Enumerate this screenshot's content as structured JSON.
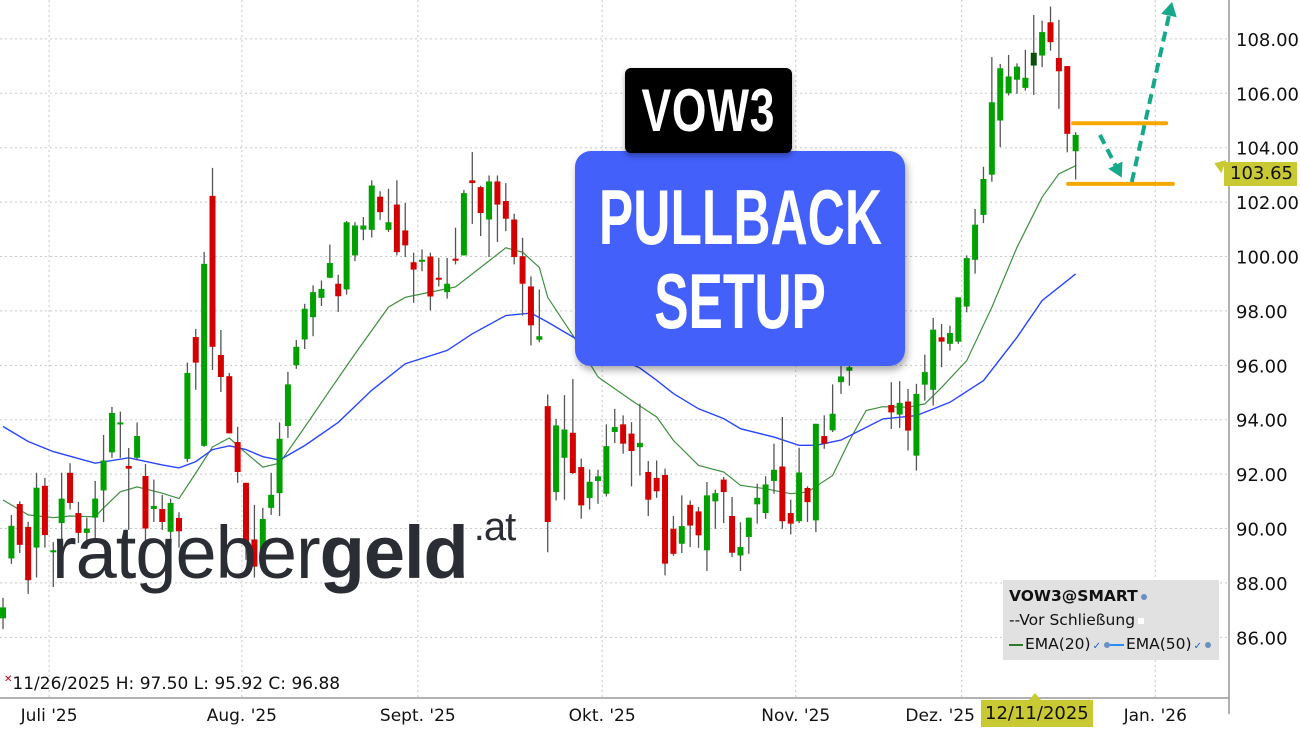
{
  "title": "VOW3",
  "subtitle_line1": "PULLBACK",
  "subtitle_line2": "SETUP",
  "logo": {
    "regular": "ratgeber",
    "bold": "geld",
    "suffix": ".at"
  },
  "info_line": "11/26/2025 H: 97.50 L: 95.92 C: 96.88",
  "last_price_label": "103.65",
  "crosshair_date_label": "12/11/2025",
  "legend": {
    "symbol": "VOW3@SMART",
    "close_item": "Vor Schließung",
    "ema20": "EMA(20)",
    "ema50": "EMA(50)"
  },
  "colors": {
    "up": "#00a000",
    "down": "#d40000",
    "up_dark": "#0b4f0b",
    "wick": "#555555",
    "ema20": "#3f8f3f",
    "ema50": "#2846ff",
    "level_lines": "#f5a800",
    "arrows": "#16a88a",
    "setup_box": "#4460fb",
    "highlight": "#c9c934"
  },
  "chart_data": {
    "type": "candlestick",
    "title": "",
    "xlabel": "",
    "ylabel": "",
    "ylim": [
      83.77,
      109.43
    ],
    "xlim_bars": [
      -0.36,
      146.3
    ],
    "grid": true,
    "y_ticks": [
      "86.00",
      "88.00",
      "90.00",
      "92.00",
      "94.00",
      "96.00",
      "98.00",
      "100.00",
      "102.00",
      "104.00",
      "106.00",
      "108.00"
    ],
    "x_ticks": [
      {
        "label": "Juli '25",
        "bar": 5.5
      },
      {
        "label": "Aug. '25",
        "bar": 28.5
      },
      {
        "label": "Sept. '25",
        "bar": 49.5
      },
      {
        "label": "Okt. '25",
        "bar": 71.5
      },
      {
        "label": "Nov. '25",
        "bar": 94.6
      },
      {
        "label": "Dez. '25",
        "bar": 114.4
      },
      {
        "label": "Jan. '26",
        "bar": 137.5
      }
    ],
    "ohlc_fields": [
      "open",
      "high",
      "low",
      "close"
    ],
    "candles": [
      [
        86.7,
        87.45,
        86.3,
        87.1
      ],
      [
        88.9,
        90.5,
        88.7,
        90.1
      ],
      [
        90.9,
        91.0,
        89.1,
        89.4
      ],
      [
        90.06,
        90.25,
        87.6,
        88.1
      ],
      [
        89.3,
        92.05,
        88.2,
        91.5
      ],
      [
        91.57,
        91.86,
        89.3,
        89.76
      ],
      [
        89.2,
        89.5,
        87.85,
        89.2
      ],
      [
        90.2,
        92.05,
        89.5,
        91.1
      ],
      [
        92.05,
        92.4,
        90.7,
        90.94
      ],
      [
        90.57,
        90.98,
        89.47,
        89.84
      ],
      [
        89.84,
        90.4,
        89.3,
        90.0
      ],
      [
        90.4,
        91.75,
        89.47,
        91.1
      ],
      [
        91.4,
        93.44,
        90.24,
        92.5
      ],
      [
        92.8,
        94.47,
        92.6,
        94.25
      ],
      [
        93.85,
        94.3,
        92.6,
        93.9
      ],
      [
        92.3,
        92.96,
        89.95,
        92.2
      ],
      [
        92.6,
        93.9,
        92.5,
        93.4
      ],
      [
        91.93,
        92.37,
        89.5,
        90.0
      ],
      [
        90.72,
        91.8,
        90.24,
        90.83
      ],
      [
        90.72,
        91.24,
        89.95,
        90.24
      ],
      [
        89.88,
        91.1,
        88.66,
        90.94
      ],
      [
        90.39,
        90.6,
        89.3,
        89.9
      ],
      [
        92.56,
        96.1,
        92.45,
        95.72
      ],
      [
        97.04,
        97.34,
        95.1,
        96.1
      ],
      [
        93.04,
        100.17,
        93.0,
        99.73
      ],
      [
        102.23,
        103.26,
        95.83,
        96.68
      ],
      [
        96.38,
        97.3,
        95.02,
        95.57
      ],
      [
        95.6,
        95.72,
        93.5,
        93.5
      ],
      [
        93.18,
        93.74,
        91.68,
        92.08
      ],
      [
        91.68,
        91.68,
        88.85,
        89.4
      ],
      [
        89.6,
        90.87,
        88.2,
        88.6
      ],
      [
        89.1,
        90.76,
        88.7,
        90.35
      ],
      [
        90.76,
        92.05,
        90.5,
        91.24
      ],
      [
        91.3,
        93.9,
        90.46,
        93.3
      ],
      [
        93.77,
        95.76,
        93.33,
        95.3
      ],
      [
        96.0,
        96.93,
        95.87,
        96.68
      ],
      [
        96.95,
        98.26,
        96.6,
        98.08
      ],
      [
        97.77,
        98.94,
        97.07,
        98.69
      ],
      [
        98.48,
        99.12,
        98.18,
        98.81
      ],
      [
        99.22,
        100.44,
        99.2,
        99.76
      ],
      [
        99.0,
        99.33,
        97.96,
        98.54
      ],
      [
        98.79,
        101.3,
        98.6,
        101.26
      ],
      [
        100.04,
        101.26,
        99.83,
        101.14
      ],
      [
        100.99,
        101.45,
        100.6,
        101.14
      ],
      [
        100.98,
        102.8,
        100.7,
        102.61
      ],
      [
        102.2,
        102.4,
        101.35,
        101.63
      ],
      [
        100.98,
        102.49,
        100.9,
        101.26
      ],
      [
        101.91,
        102.8,
        100.04,
        100.16
      ],
      [
        100.96,
        101.97,
        99.98,
        100.41
      ],
      [
        99.79,
        100.14,
        98.3,
        99.52
      ],
      [
        99.83,
        100.26,
        99.46,
        99.88
      ],
      [
        100.0,
        100.14,
        98.02,
        98.53
      ],
      [
        99.22,
        99.95,
        98.9,
        99.16
      ],
      [
        98.69,
        99.95,
        98.45,
        99.0
      ],
      [
        99.92,
        101.06,
        99.71,
        99.86
      ],
      [
        100.04,
        102.45,
        100.04,
        102.33
      ],
      [
        102.8,
        103.84,
        101.2,
        102.7
      ],
      [
        102.55,
        102.6,
        100.75,
        101.6
      ],
      [
        101.36,
        102.98,
        99.98,
        102.76
      ],
      [
        102.76,
        102.98,
        100.53,
        101.91
      ],
      [
        102.04,
        102.7,
        100.93,
        101.39
      ],
      [
        101.36,
        101.57,
        99.71,
        99.98
      ],
      [
        100.01,
        100.69,
        97.83,
        99.0
      ],
      [
        98.9,
        99.27,
        96.73,
        97.47
      ],
      [
        96.94,
        98.79,
        96.85,
        97.07
      ],
      [
        94.5,
        94.93,
        89.13,
        90.24
      ],
      [
        91.34,
        94.03,
        91.03,
        93.79
      ],
      [
        92.6,
        94.9,
        91.06,
        93.64
      ],
      [
        93.52,
        95.5,
        92.0,
        92.04
      ],
      [
        92.26,
        92.57,
        90.36,
        90.85
      ],
      [
        91.12,
        92.17,
        90.7,
        91.72
      ],
      [
        91.75,
        92.16,
        90.91,
        91.92
      ],
      [
        91.28,
        93.83,
        91.18,
        93.03
      ],
      [
        93.55,
        94.4,
        93.14,
        93.73
      ],
      [
        93.83,
        94.16,
        92.75,
        93.12
      ],
      [
        93.49,
        93.91,
        91.55,
        92.85
      ],
      [
        92.99,
        94.59,
        91.95,
        93.15
      ],
      [
        92.08,
        92.48,
        90.46,
        91.06
      ],
      [
        91.86,
        92.5,
        91.13,
        91.37
      ],
      [
        91.97,
        92.2,
        88.28,
        88.71
      ],
      [
        89.99,
        90.46,
        89.0,
        89.07
      ],
      [
        89.44,
        91.22,
        89.1,
        90.09
      ],
      [
        90.87,
        91.03,
        89.32,
        90.11
      ],
      [
        90.63,
        90.79,
        89.29,
        89.75
      ],
      [
        89.2,
        91.71,
        88.44,
        91.22
      ],
      [
        91.0,
        91.43,
        89.99,
        91.3
      ],
      [
        91.8,
        91.9,
        90.2,
        91.34
      ],
      [
        90.46,
        91.16,
        88.95,
        89.11
      ],
      [
        89.01,
        90.23,
        88.44,
        89.32
      ],
      [
        89.69,
        90.4,
        89.07,
        90.4
      ],
      [
        90.89,
        91.65,
        90.18,
        91.13
      ],
      [
        90.57,
        91.92,
        90.36,
        91.62
      ],
      [
        91.75,
        93.12,
        91.28,
        92.16
      ],
      [
        92.28,
        94.1,
        89.99,
        90.27
      ],
      [
        90.57,
        91.06,
        89.78,
        90.18
      ],
      [
        90.27,
        92.97,
        90.2,
        92.06
      ],
      [
        91.49,
        91.55,
        90.24,
        90.97
      ],
      [
        90.3,
        93.85,
        89.87,
        93.85
      ],
      [
        93.4,
        94.16,
        92.93,
        93.12
      ],
      [
        93.61,
        95.3,
        93.55,
        94.22
      ],
      [
        95.38,
        96.0,
        94.95,
        95.59
      ],
      [
        95.8,
        96.1,
        95.25,
        95.93
      ],
      null,
      null,
      null,
      null,
      [
        94.54,
        95.38,
        93.66,
        94.27
      ],
      [
        94.19,
        95.42,
        93.7,
        94.62
      ],
      [
        94.67,
        95.13,
        92.87,
        93.6
      ],
      [
        92.68,
        95.32,
        92.13,
        94.95
      ],
      [
        95.29,
        96.39,
        94.7,
        95.75
      ],
      [
        95.1,
        97.74,
        94.52,
        97.31
      ],
      [
        97.03,
        97.52,
        95.93,
        96.87
      ],
      [
        96.79,
        97.46,
        96.54,
        97.19
      ],
      [
        96.87,
        98.5,
        96.79,
        98.5
      ],
      [
        98.16,
        100.04,
        97.95,
        99.94
      ],
      [
        99.88,
        101.75,
        99.37,
        101.17
      ],
      [
        101.53,
        103.3,
        101.23,
        102.85
      ],
      [
        103.01,
        107.33,
        102.75,
        105.67
      ],
      [
        105.0,
        107.08,
        104.02,
        106.92
      ],
      [
        106.0,
        107.41,
        105.92,
        106.62
      ],
      [
        106.5,
        107.1,
        105.98,
        106.98
      ],
      [
        106.2,
        107.6,
        106.1,
        106.57
      ],
      [
        107.02,
        108.88,
        105.94,
        107.49
      ],
      [
        107.39,
        108.67,
        106.96,
        108.25
      ],
      [
        108.61,
        109.19,
        107.57,
        107.88
      ],
      [
        107.3,
        108.7,
        105.43,
        106.81
      ],
      [
        107.0,
        107.0,
        103.83,
        104.51
      ],
      [
        103.87,
        104.57,
        102.83,
        104.47
      ]
    ],
    "dark_up_bars": [
      123
    ],
    "series": [
      {
        "name": "EMA(20)",
        "points": [
          [
            0,
            91.05
          ],
          [
            3,
            90.5
          ],
          [
            6,
            90.4
          ],
          [
            8,
            90.46
          ],
          [
            11,
            90.43
          ],
          [
            12,
            90.76
          ],
          [
            14,
            91.35
          ],
          [
            16,
            91.53
          ],
          [
            19,
            91.3
          ],
          [
            21,
            91.1
          ],
          [
            23,
            92.04
          ],
          [
            25,
            93.0
          ],
          [
            27,
            93.33
          ],
          [
            29,
            92.78
          ],
          [
            31,
            92.26
          ],
          [
            33,
            92.4
          ],
          [
            36,
            93.73
          ],
          [
            39,
            95.08
          ],
          [
            42,
            96.42
          ],
          [
            46,
            98.14
          ],
          [
            48,
            98.5
          ],
          [
            51,
            98.69
          ],
          [
            54,
            98.88
          ],
          [
            57,
            99.6
          ],
          [
            60,
            100.32
          ],
          [
            62,
            100.16
          ],
          [
            64,
            99.6
          ],
          [
            65,
            98.5
          ],
          [
            68,
            97.1
          ],
          [
            71,
            95.57
          ],
          [
            75,
            94.71
          ],
          [
            78,
            94.1
          ],
          [
            80,
            93.24
          ],
          [
            83,
            92.32
          ],
          [
            86,
            92.08
          ],
          [
            88,
            91.59
          ],
          [
            91,
            91.46
          ],
          [
            94,
            91.28
          ],
          [
            96,
            91.34
          ],
          [
            99,
            91.95
          ],
          [
            101,
            93.23
          ],
          [
            103,
            94.34
          ],
          [
            105,
            94.48
          ],
          [
            108,
            94.46
          ],
          [
            110,
            94.58
          ],
          [
            112,
            95.19
          ],
          [
            115,
            96.17
          ],
          [
            118,
            98.13
          ],
          [
            121,
            100.34
          ],
          [
            124,
            102.18
          ],
          [
            126,
            103.04
          ],
          [
            128,
            103.34
          ]
        ]
      },
      {
        "name": "EMA(50)",
        "points": [
          [
            0,
            93.75
          ],
          [
            3,
            93.2
          ],
          [
            6,
            92.83
          ],
          [
            11,
            92.4
          ],
          [
            15,
            92.6
          ],
          [
            19,
            92.34
          ],
          [
            21,
            92.23
          ],
          [
            23,
            92.46
          ],
          [
            25,
            92.9
          ],
          [
            27,
            93.04
          ],
          [
            29,
            92.9
          ],
          [
            31,
            92.64
          ],
          [
            33,
            92.52
          ],
          [
            36,
            93.05
          ],
          [
            40,
            93.9
          ],
          [
            44,
            95.08
          ],
          [
            48,
            96.06
          ],
          [
            53,
            96.55
          ],
          [
            56,
            97.16
          ],
          [
            60,
            97.83
          ],
          [
            63,
            97.92
          ],
          [
            65,
            97.59
          ],
          [
            68,
            97.04
          ],
          [
            76,
            95.9
          ],
          [
            78,
            95.45
          ],
          [
            80,
            94.96
          ],
          [
            83,
            94.4
          ],
          [
            86,
            94.04
          ],
          [
            88,
            93.67
          ],
          [
            92,
            93.36
          ],
          [
            95,
            93.06
          ],
          [
            97,
            93.06
          ],
          [
            100,
            93.25
          ],
          [
            105,
            94.03
          ],
          [
            109,
            94.15
          ],
          [
            113,
            94.64
          ],
          [
            117,
            95.44
          ],
          [
            121,
            97.03
          ],
          [
            124,
            98.38
          ],
          [
            128,
            99.36
          ]
        ]
      }
    ],
    "annotations": {
      "levels": [
        {
          "price": 104.9,
          "from_bar": 127.7,
          "to_bar": 138.8
        },
        {
          "price": 102.67,
          "from_bar": 127.1,
          "to_bar": 139.6
        }
      ],
      "arrows": [
        {
          "from": [
            130.9,
            104.47
          ],
          "to": [
            133.5,
            102.9
          ]
        },
        {
          "from": [
            134.7,
            102.74
          ],
          "to": [
            139.5,
            109.36
          ]
        }
      ]
    }
  }
}
